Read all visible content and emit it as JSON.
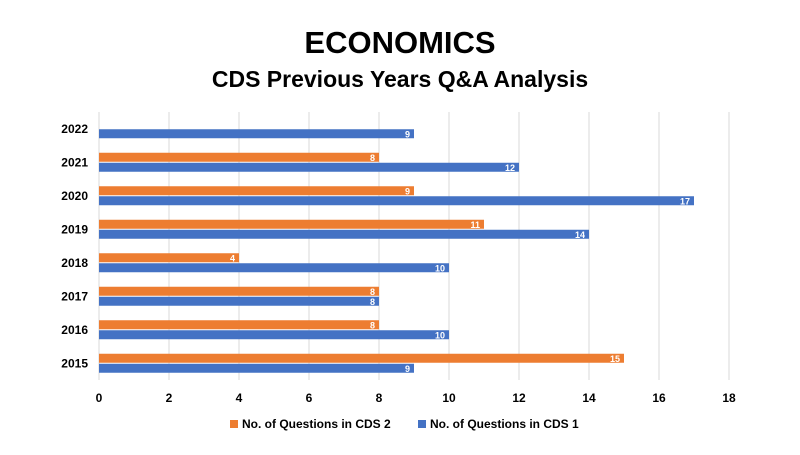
{
  "chart_data": {
    "type": "bar",
    "orientation": "horizontal",
    "title": "ECONOMICS",
    "subtitle": "CDS Previous Years Q&A Analysis",
    "categories": [
      "2022",
      "2021",
      "2020",
      "2019",
      "2018",
      "2017",
      "2016",
      "2015"
    ],
    "series": [
      {
        "name": "No. of Questions in CDS 2",
        "color": "#ED7D31",
        "values": [
          null,
          8,
          9,
          11,
          4,
          8,
          8,
          15
        ]
      },
      {
        "name": "No. of Questions in CDS 1",
        "color": "#4472C4",
        "values": [
          9,
          12,
          17,
          14,
          10,
          8,
          10,
          9
        ]
      }
    ],
    "xlim": [
      0,
      18
    ],
    "xticks": [
      "0",
      "2",
      "4",
      "6",
      "8",
      "10",
      "12",
      "14",
      "16",
      "18"
    ],
    "grid": true,
    "legend_position": "bottom",
    "data_labels": true
  }
}
